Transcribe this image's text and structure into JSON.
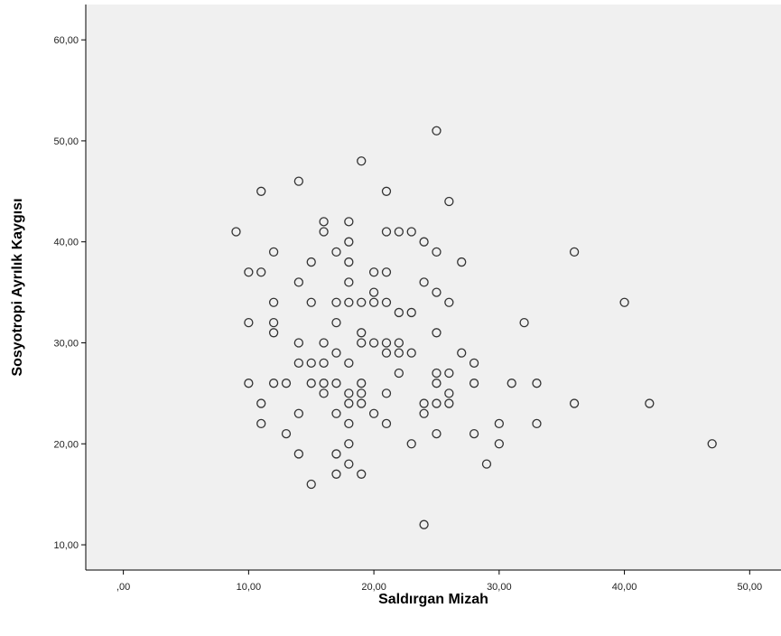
{
  "chart_data": {
    "type": "scatter",
    "title": "",
    "xlabel": "Saldırgan Mizah",
    "ylabel": "Sosyotropi Ayrılık Kaygısı",
    "xlim": [
      -3,
      52.5
    ],
    "ylim": [
      7.5,
      63.5
    ],
    "xticks": [
      {
        "value": 0,
        "label": ",00"
      },
      {
        "value": 10,
        "label": "10,00"
      },
      {
        "value": 20,
        "label": "20,00"
      },
      {
        "value": 30,
        "label": "30,00"
      },
      {
        "value": 40,
        "label": "40,00"
      },
      {
        "value": 50,
        "label": "50,00"
      }
    ],
    "yticks": [
      {
        "value": 10,
        "label": "10,00"
      },
      {
        "value": 20,
        "label": "20,00"
      },
      {
        "value": 30,
        "label": "30,00"
      },
      {
        "value": 40,
        "label": "40,00"
      },
      {
        "value": 50,
        "label": "50,00"
      },
      {
        "value": 60,
        "label": "60,00"
      }
    ],
    "grid": false,
    "plot_background": "#f0f0f0",
    "marker_stroke": "#333333",
    "marker_fill": "#f0f0f0",
    "points": [
      {
        "x": 25,
        "y": 51
      },
      {
        "x": 19,
        "y": 48
      },
      {
        "x": 14,
        "y": 46
      },
      {
        "x": 11,
        "y": 45
      },
      {
        "x": 21,
        "y": 45
      },
      {
        "x": 26,
        "y": 44
      },
      {
        "x": 16,
        "y": 42
      },
      {
        "x": 18,
        "y": 42
      },
      {
        "x": 9,
        "y": 41
      },
      {
        "x": 16,
        "y": 41
      },
      {
        "x": 21,
        "y": 41
      },
      {
        "x": 22,
        "y": 41
      },
      {
        "x": 23,
        "y": 41
      },
      {
        "x": 18,
        "y": 40
      },
      {
        "x": 24,
        "y": 40
      },
      {
        "x": 12,
        "y": 39
      },
      {
        "x": 17,
        "y": 39
      },
      {
        "x": 25,
        "y": 39
      },
      {
        "x": 36,
        "y": 39
      },
      {
        "x": 15,
        "y": 38
      },
      {
        "x": 18,
        "y": 38
      },
      {
        "x": 27,
        "y": 38
      },
      {
        "x": 10,
        "y": 37
      },
      {
        "x": 11,
        "y": 37
      },
      {
        "x": 20,
        "y": 37
      },
      {
        "x": 21,
        "y": 37
      },
      {
        "x": 14,
        "y": 36
      },
      {
        "x": 18,
        "y": 36
      },
      {
        "x": 24,
        "y": 36
      },
      {
        "x": 20,
        "y": 35
      },
      {
        "x": 25,
        "y": 35
      },
      {
        "x": 12,
        "y": 34
      },
      {
        "x": 15,
        "y": 34
      },
      {
        "x": 17,
        "y": 34
      },
      {
        "x": 18,
        "y": 34
      },
      {
        "x": 19,
        "y": 34
      },
      {
        "x": 20,
        "y": 34
      },
      {
        "x": 21,
        "y": 34
      },
      {
        "x": 26,
        "y": 34
      },
      {
        "x": 40,
        "y": 34
      },
      {
        "x": 22,
        "y": 33
      },
      {
        "x": 23,
        "y": 33
      },
      {
        "x": 10,
        "y": 32
      },
      {
        "x": 12,
        "y": 32
      },
      {
        "x": 17,
        "y": 32
      },
      {
        "x": 32,
        "y": 32
      },
      {
        "x": 12,
        "y": 31
      },
      {
        "x": 19,
        "y": 31
      },
      {
        "x": 25,
        "y": 31
      },
      {
        "x": 14,
        "y": 30
      },
      {
        "x": 16,
        "y": 30
      },
      {
        "x": 19,
        "y": 30
      },
      {
        "x": 20,
        "y": 30
      },
      {
        "x": 21,
        "y": 30
      },
      {
        "x": 22,
        "y": 30
      },
      {
        "x": 17,
        "y": 29
      },
      {
        "x": 21,
        "y": 29
      },
      {
        "x": 22,
        "y": 29
      },
      {
        "x": 23,
        "y": 29
      },
      {
        "x": 27,
        "y": 29
      },
      {
        "x": 14,
        "y": 28
      },
      {
        "x": 15,
        "y": 28
      },
      {
        "x": 16,
        "y": 28
      },
      {
        "x": 18,
        "y": 28
      },
      {
        "x": 28,
        "y": 28
      },
      {
        "x": 22,
        "y": 27
      },
      {
        "x": 25,
        "y": 27
      },
      {
        "x": 26,
        "y": 27
      },
      {
        "x": 10,
        "y": 26
      },
      {
        "x": 12,
        "y": 26
      },
      {
        "x": 13,
        "y": 26
      },
      {
        "x": 15,
        "y": 26
      },
      {
        "x": 16,
        "y": 26
      },
      {
        "x": 17,
        "y": 26
      },
      {
        "x": 19,
        "y": 26
      },
      {
        "x": 25,
        "y": 26
      },
      {
        "x": 28,
        "y": 26
      },
      {
        "x": 31,
        "y": 26
      },
      {
        "x": 33,
        "y": 26
      },
      {
        "x": 16,
        "y": 25
      },
      {
        "x": 18,
        "y": 25
      },
      {
        "x": 19,
        "y": 25
      },
      {
        "x": 21,
        "y": 25
      },
      {
        "x": 26,
        "y": 25
      },
      {
        "x": 11,
        "y": 24
      },
      {
        "x": 18,
        "y": 24
      },
      {
        "x": 19,
        "y": 24
      },
      {
        "x": 24,
        "y": 24
      },
      {
        "x": 25,
        "y": 24
      },
      {
        "x": 26,
        "y": 24
      },
      {
        "x": 36,
        "y": 24
      },
      {
        "x": 42,
        "y": 24
      },
      {
        "x": 14,
        "y": 23
      },
      {
        "x": 17,
        "y": 23
      },
      {
        "x": 20,
        "y": 23
      },
      {
        "x": 24,
        "y": 23
      },
      {
        "x": 11,
        "y": 22
      },
      {
        "x": 18,
        "y": 22
      },
      {
        "x": 21,
        "y": 22
      },
      {
        "x": 30,
        "y": 22
      },
      {
        "x": 33,
        "y": 22
      },
      {
        "x": 13,
        "y": 21
      },
      {
        "x": 25,
        "y": 21
      },
      {
        "x": 28,
        "y": 21
      },
      {
        "x": 18,
        "y": 20
      },
      {
        "x": 23,
        "y": 20
      },
      {
        "x": 30,
        "y": 20
      },
      {
        "x": 47,
        "y": 20
      },
      {
        "x": 14,
        "y": 19
      },
      {
        "x": 17,
        "y": 19
      },
      {
        "x": 18,
        "y": 18
      },
      {
        "x": 29,
        "y": 18
      },
      {
        "x": 17,
        "y": 17
      },
      {
        "x": 19,
        "y": 17
      },
      {
        "x": 15,
        "y": 16
      },
      {
        "x": 24,
        "y": 12
      }
    ]
  }
}
